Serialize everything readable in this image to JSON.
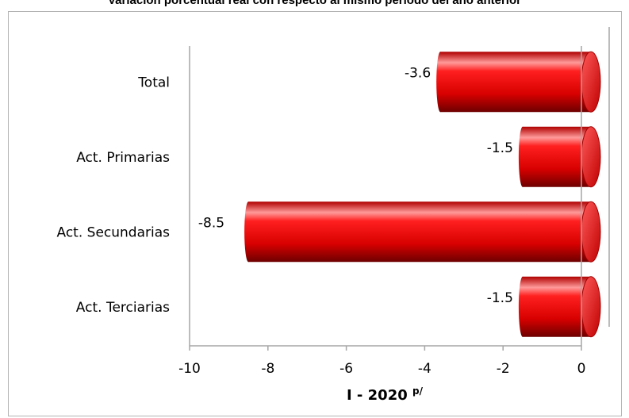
{
  "chart_data": {
    "type": "bar",
    "orientation": "horizontal",
    "title": "Variación porcentual real con respecto al mismo período del año anterior",
    "categories": [
      "Total",
      "Act. Primarias",
      "Act. Secundarias",
      "Act. Terciarias"
    ],
    "values": [
      -3.6,
      -1.5,
      -8.5,
      -1.5
    ],
    "value_labels": [
      "-3.6",
      "-1.5",
      "-8.5",
      "-1.5"
    ],
    "xlim": [
      -10,
      0
    ],
    "xticks": [
      -10,
      -8,
      -6,
      -4,
      -2,
      0
    ],
    "xtick_labels": [
      "-10",
      "-8",
      "-6",
      "-4",
      "-2",
      "0"
    ],
    "xlabel": "I - 2020",
    "xlabel_superscript": "p/",
    "grid": false,
    "colors": {
      "bar": "#e00000",
      "bar_highlight": "#ff9a9a",
      "bar_shadow": "#7a0000",
      "cap": "#ff2a2a"
    }
  }
}
